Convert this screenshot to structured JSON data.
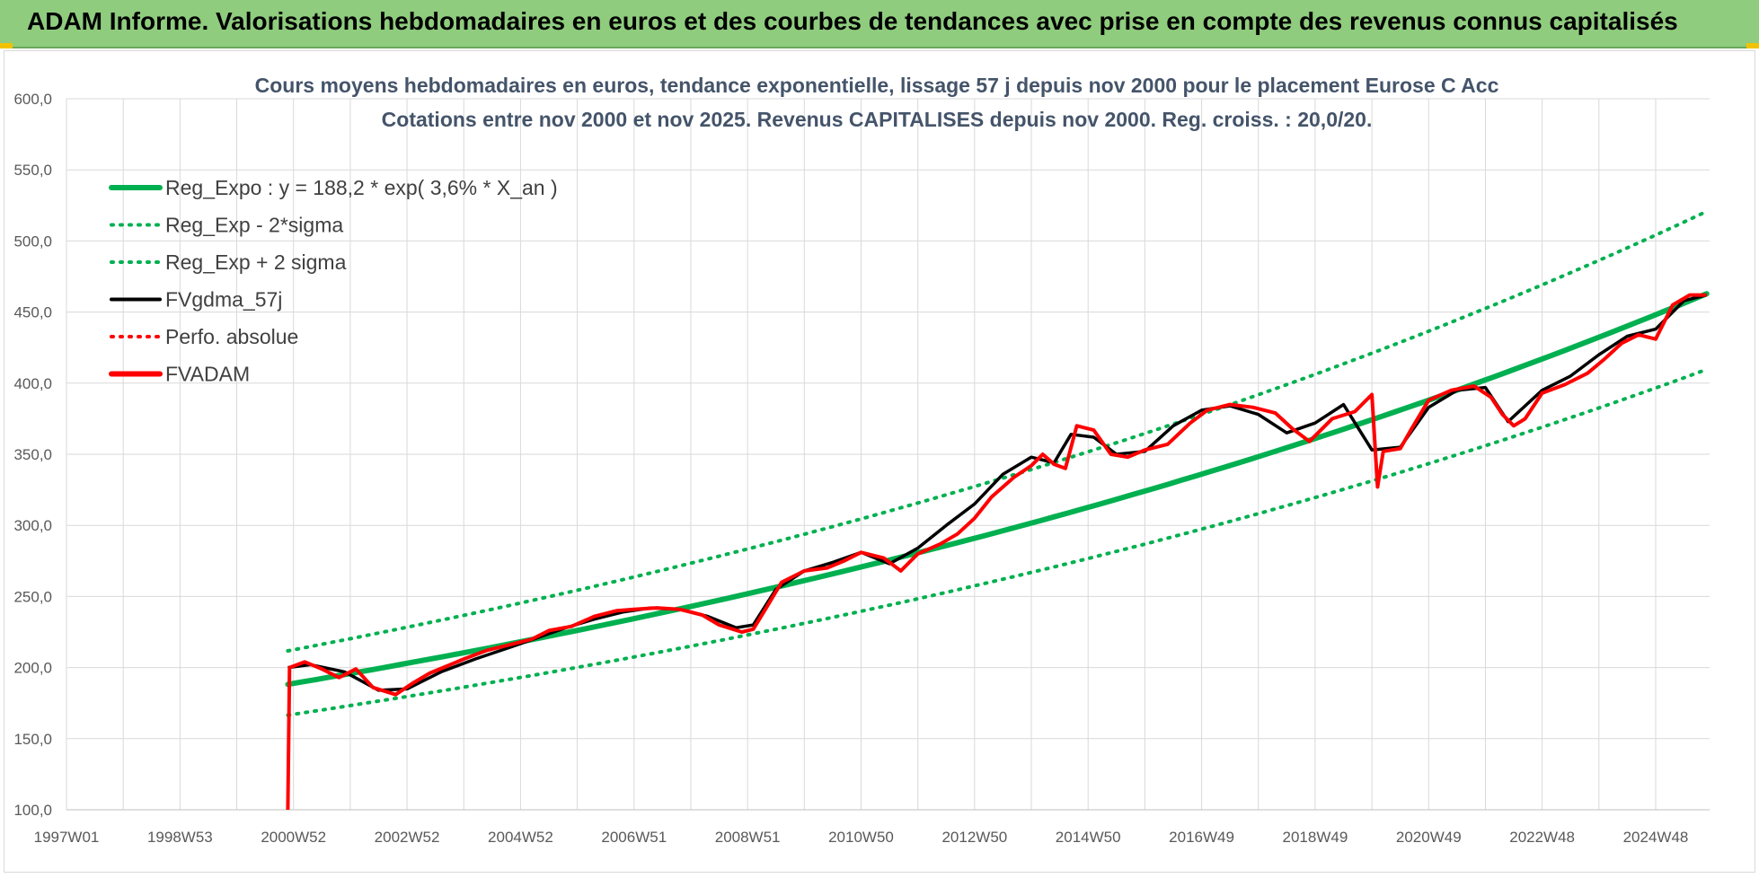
{
  "banner": {
    "title": "ADAM Informe. Valorisations hebdomadaires en euros et des courbes de tendances avec prise en compte des revenus connus capitalisés"
  },
  "colors": {
    "banner_bg": "#8fcc7e",
    "regression": "#00b050",
    "fvgdma": "#000000",
    "fvadam": "#ff0000",
    "perfo": "#ff0000",
    "grid": "#d9d9d9"
  },
  "chart_data": {
    "type": "line",
    "title": "Cours moyens hebdomadaires en euros, tendance exponentielle, lissage 57 j depuis nov 2000 pour le placement Eurose C Acc",
    "subtitle": "Cotations entre nov 2000 et nov 2025. Revenus CAPITALISES depuis nov 2000. Reg. croiss. : 20,0/20.",
    "xlabel": "",
    "ylabel": "",
    "ylim": [
      100,
      600
    ],
    "yticks": [
      "100,0",
      "150,0",
      "200,0",
      "250,0",
      "300,0",
      "350,0",
      "400,0",
      "450,0",
      "500,0",
      "550,0",
      "600,0"
    ],
    "x_ticks": [
      "1997W01",
      "1998W53",
      "2000W52",
      "2002W52",
      "2004W52",
      "2006W51",
      "2008W51",
      "2010W50",
      "2012W50",
      "2014W50",
      "2016W49",
      "2018W49",
      "2020W49",
      "2022W48",
      "2024W48"
    ],
    "x_unit": "year",
    "x_tick_years": [
      1997.0,
      1999.0,
      2001.0,
      2003.0,
      2005.0,
      2007.0,
      2009.0,
      2011.0,
      2013.0,
      2015.0,
      2017.0,
      2019.0,
      2021.0,
      2023.0,
      2025.0
    ],
    "xlim": [
      1997.0,
      2025.95
    ],
    "grid": true,
    "legend_position": "top-left",
    "regression_formula": {
      "a": 188.2,
      "rate_pct": 3.6,
      "x_start": 2000.9,
      "x_end": 2025.9,
      "upper_multiplier": 1.125,
      "lower_multiplier": 0.885
    },
    "series": [
      {
        "name": "Reg_Expo : y = 188,2 * exp( 3,6% *  X_an )",
        "style": "solid-thick",
        "color": "#00b050",
        "kind": "regression",
        "multiplier": 1.0
      },
      {
        "name": "Reg_Exp - 2*sigma",
        "style": "dotted",
        "color": "#00b050",
        "kind": "regression",
        "multiplier": 0.885
      },
      {
        "name": "Reg_Exp + 2 sigma",
        "style": "dotted",
        "color": "#00b050",
        "kind": "regression",
        "multiplier": 1.125
      },
      {
        "name": "FVgdma_57j",
        "style": "solid",
        "color": "#000000",
        "kind": "smoothed",
        "x": [
          2000.9,
          2001.3,
          2001.9,
          2002.5,
          2003.0,
          2003.6,
          2004.2,
          2004.8,
          2005.3,
          2005.8,
          2006.3,
          2006.8,
          2007.3,
          2007.8,
          2008.3,
          2008.8,
          2009.1,
          2009.5,
          2010.0,
          2010.5,
          2011.0,
          2011.5,
          2012.0,
          2012.5,
          2013.0,
          2013.5,
          2014.0,
          2014.4,
          2014.7,
          2015.1,
          2015.5,
          2016.0,
          2016.5,
          2017.0,
          2017.5,
          2018.0,
          2018.5,
          2019.0,
          2019.5,
          2020.0,
          2020.5,
          2021.0,
          2021.5,
          2022.0,
          2022.4,
          2023.0,
          2023.5,
          2024.0,
          2024.5,
          2025.0,
          2025.5,
          2025.9
        ],
        "y": [
          200,
          202,
          197,
          184,
          185,
          197,
          206,
          214,
          221,
          228,
          234,
          239,
          242,
          241,
          236,
          228,
          230,
          255,
          268,
          274,
          281,
          273,
          284,
          300,
          315,
          336,
          348,
          344,
          364,
          362,
          350,
          352,
          370,
          381,
          384,
          378,
          365,
          372,
          385,
          353,
          355,
          383,
          395,
          397,
          373,
          395,
          405,
          420,
          433,
          438,
          458,
          462
        ]
      },
      {
        "name": "Perfo. absolue",
        "style": "dotted",
        "color": "#ff0000",
        "kind": "absolute"
      },
      {
        "name": "FVADAM",
        "style": "solid-thick",
        "color": "#ff0000",
        "kind": "raw",
        "x": [
          2000.9,
          2000.93,
          2001.2,
          2001.5,
          2001.8,
          2002.1,
          2002.4,
          2002.8,
          2003.1,
          2003.4,
          2003.7,
          2004.0,
          2004.4,
          2004.8,
          2005.2,
          2005.5,
          2005.9,
          2006.3,
          2006.7,
          2007.0,
          2007.4,
          2007.8,
          2008.2,
          2008.5,
          2008.9,
          2009.1,
          2009.3,
          2009.6,
          2010.0,
          2010.4,
          2010.7,
          2011.0,
          2011.4,
          2011.7,
          2012.0,
          2012.4,
          2012.7,
          2013.0,
          2013.3,
          2013.7,
          2014.0,
          2014.2,
          2014.4,
          2014.6,
          2014.8,
          2015.1,
          2015.4,
          2015.7,
          2016.0,
          2016.4,
          2016.8,
          2017.1,
          2017.5,
          2017.9,
          2018.3,
          2018.6,
          2018.9,
          2019.3,
          2019.7,
          2020.0,
          2020.1,
          2020.2,
          2020.5,
          2020.7,
          2021.0,
          2021.4,
          2021.8,
          2022.1,
          2022.3,
          2022.5,
          2022.7,
          2023.0,
          2023.4,
          2023.8,
          2024.1,
          2024.4,
          2024.7,
          2025.0,
          2025.3,
          2025.6,
          2025.9
        ],
        "y": [
          100,
          200,
          204,
          199,
          193,
          199,
          186,
          181,
          189,
          196,
          201,
          206,
          212,
          216,
          220,
          226,
          229,
          236,
          240,
          241,
          242,
          241,
          237,
          230,
          225,
          227,
          240,
          260,
          268,
          270,
          275,
          281,
          277,
          268,
          280,
          287,
          294,
          305,
          320,
          334,
          342,
          350,
          343,
          340,
          370,
          367,
          350,
          348,
          353,
          357,
          372,
          381,
          385,
          383,
          379,
          368,
          359,
          375,
          380,
          392,
          327,
          352,
          354,
          368,
          388,
          395,
          398,
          390,
          378,
          370,
          375,
          393,
          399,
          407,
          417,
          428,
          434,
          431,
          455,
          462,
          462
        ]
      }
    ]
  }
}
